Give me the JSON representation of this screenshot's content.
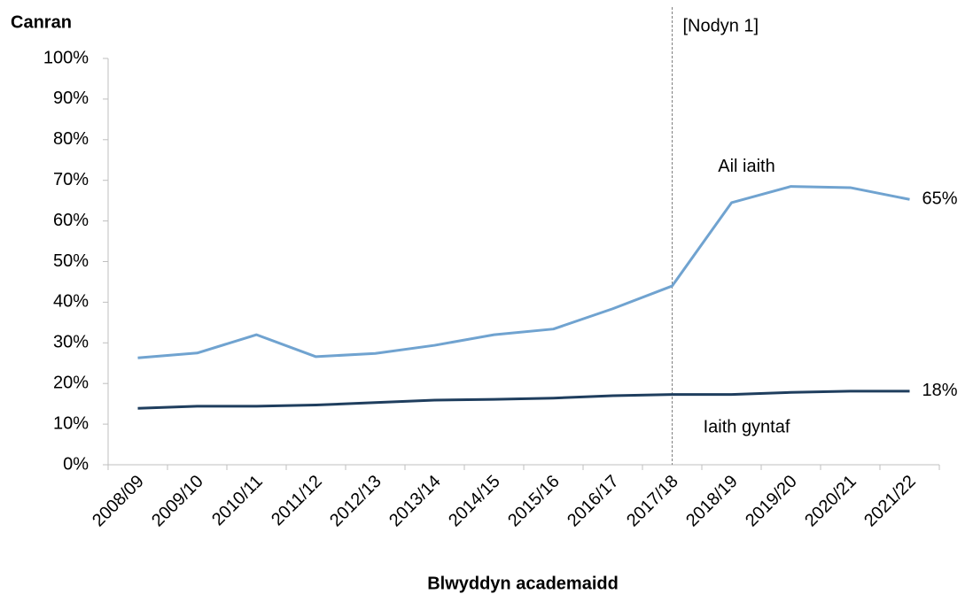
{
  "chart_data": {
    "type": "line",
    "y_label": "Canran",
    "x_label": "Blwyddyn academaidd",
    "categories": [
      "2008/09",
      "2009/10",
      "2010/11",
      "2011/12",
      "2012/13",
      "2013/14",
      "2014/15",
      "2015/16",
      "2016/17",
      "2017/18",
      "2018/19",
      "2019/20",
      "2020/21",
      "2021/22"
    ],
    "series": [
      {
        "name": "Ail iaith",
        "color": "#70a3d0",
        "values": [
          26.3,
          27.5,
          32,
          26.6,
          27.4,
          29.4,
          32,
          33.4,
          38.4,
          44,
          64.5,
          68.5,
          68.2,
          65.3
        ],
        "value_labels": [
          null,
          null,
          null,
          null,
          null,
          null,
          null,
          null,
          null,
          null,
          null,
          null,
          null,
          "65%"
        ]
      },
      {
        "name": "Iaith gyntaf",
        "color": "#1f3e5e",
        "values": [
          13.9,
          14.4,
          14.4,
          14.7,
          15.3,
          15.9,
          16.1,
          16.4,
          17.0,
          17.3,
          17.3,
          17.8,
          18.1,
          18.1
        ],
        "value_labels": [
          null,
          null,
          null,
          null,
          null,
          null,
          null,
          null,
          null,
          null,
          null,
          null,
          null,
          "18%"
        ]
      }
    ],
    "ylim": [
      0,
      100
    ],
    "yticks": [
      {
        "value": 0,
        "label": "0%"
      },
      {
        "value": 10,
        "label": "10%"
      },
      {
        "value": 20,
        "label": "20%"
      },
      {
        "value": 30,
        "label": "30%"
      },
      {
        "value": 40,
        "label": "40%"
      },
      {
        "value": 50,
        "label": "50%"
      },
      {
        "value": 60,
        "label": "60%"
      },
      {
        "value": 70,
        "label": "70%"
      },
      {
        "value": 80,
        "label": "80%"
      },
      {
        "value": 90,
        "label": "90%"
      },
      {
        "value": 100,
        "label": "100%"
      }
    ],
    "grid": false,
    "annotations": [
      {
        "text": "[Nodyn 1]",
        "x": "2017/18"
      }
    ]
  }
}
